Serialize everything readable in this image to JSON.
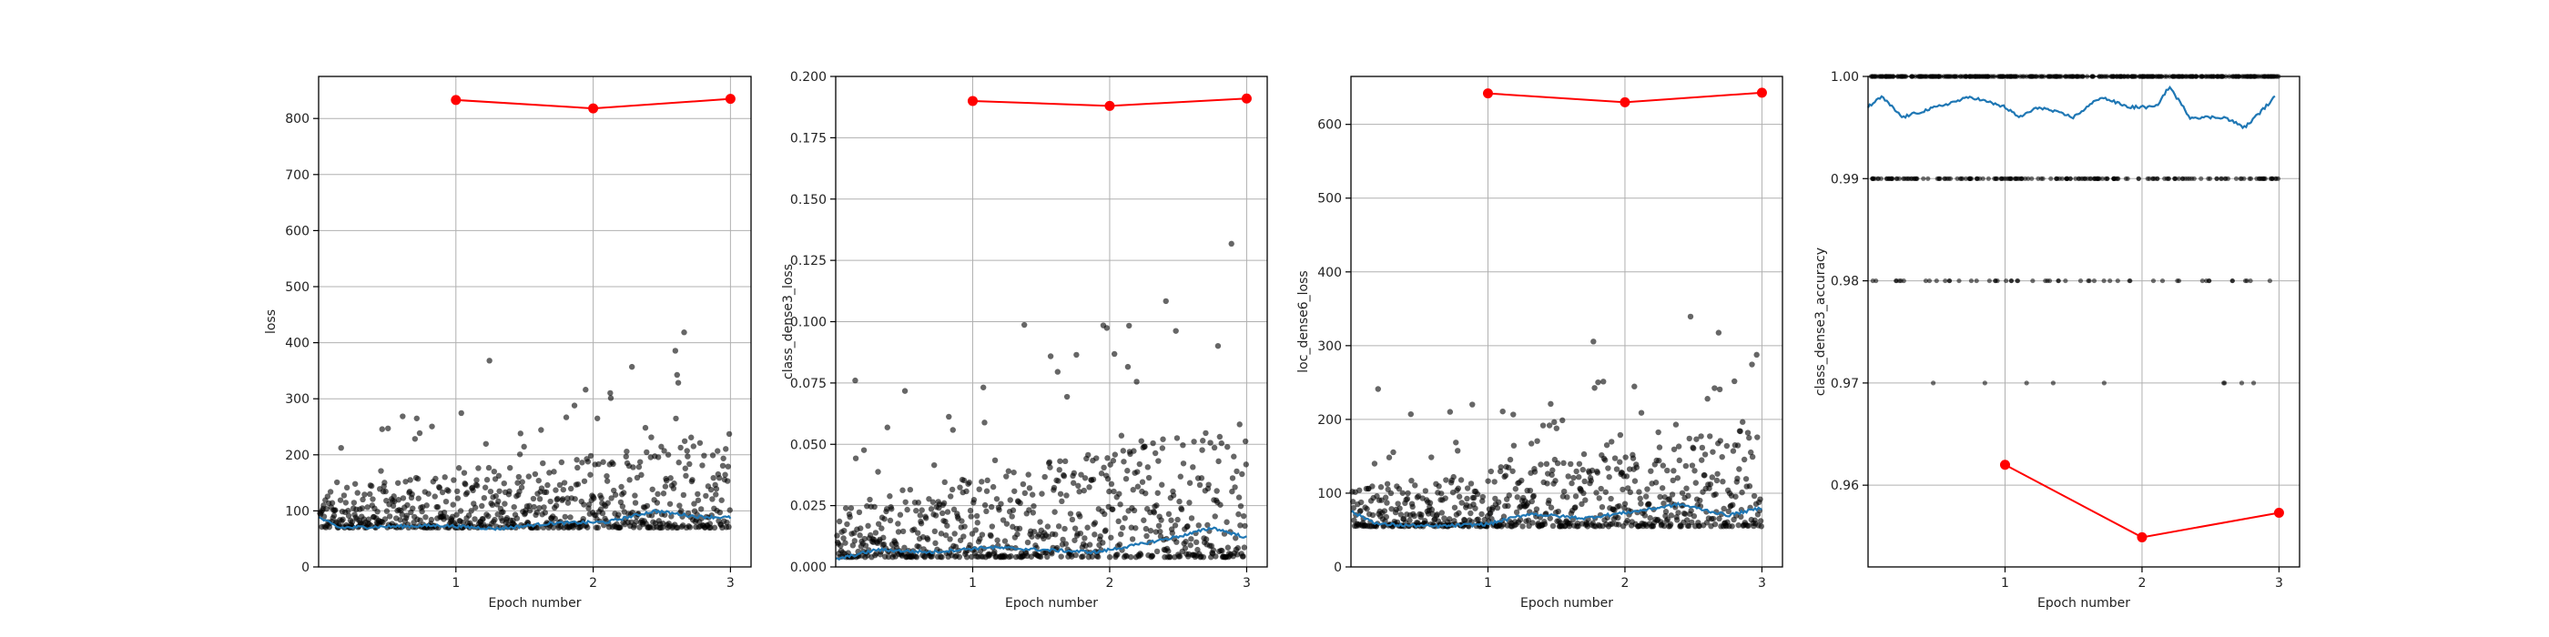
{
  "chart_data": [
    {
      "type": "scatter",
      "xlabel": "Epoch number",
      "ylabel": "loss",
      "xlim": [
        0,
        3.15
      ],
      "ylim": [
        0,
        875
      ],
      "xticks": [
        1,
        2,
        3
      ],
      "xtick_labels": [
        "1",
        "2",
        "3"
      ],
      "yticks": [
        0,
        100,
        200,
        300,
        400,
        500,
        600,
        700,
        800
      ],
      "ytick_labels": [
        "0",
        "100",
        "200",
        "300",
        "400",
        "500",
        "600",
        "700",
        "800"
      ],
      "grid": true,
      "scatter_base": 70,
      "scatter_spread": 36,
      "smooth_anchors": [
        [
          0,
          88
        ],
        [
          0.15,
          70
        ],
        [
          0.5,
          72
        ],
        [
          0.9,
          74
        ],
        [
          1.3,
          68
        ],
        [
          1.7,
          78
        ],
        [
          2.1,
          80
        ],
        [
          2.45,
          100
        ],
        [
          2.75,
          90
        ],
        [
          3,
          88
        ]
      ],
      "series": [
        {
          "name": "epoch",
          "color": "#ff0000",
          "x": [
            1,
            2,
            3
          ],
          "y": [
            833,
            818,
            835
          ]
        }
      ]
    },
    {
      "type": "scatter",
      "xlabel": "Epoch number",
      "ylabel": "class_dense3_loss",
      "xlim": [
        0,
        3.15
      ],
      "ylim": [
        0,
        0.2
      ],
      "xticks": [
        1,
        2,
        3
      ],
      "xtick_labels": [
        "1",
        "2",
        "3"
      ],
      "yticks": [
        0,
        0.025,
        0.05,
        0.075,
        0.1,
        0.125,
        0.15,
        0.175,
        0.2
      ],
      "ytick_labels": [
        "0.000",
        "0.025",
        "0.050",
        "0.075",
        "0.100",
        "0.125",
        "0.150",
        "0.175",
        "0.200"
      ],
      "grid": true,
      "scatter_base": 0.004,
      "scatter_spread": 0.012,
      "smooth_anchors": [
        [
          0,
          0.003
        ],
        [
          0.3,
          0.007
        ],
        [
          0.7,
          0.006
        ],
        [
          1.1,
          0.008
        ],
        [
          1.5,
          0.007
        ],
        [
          1.9,
          0.006
        ],
        [
          2.2,
          0.009
        ],
        [
          2.55,
          0.013
        ],
        [
          2.75,
          0.016
        ],
        [
          3,
          0.012
        ]
      ],
      "series": [
        {
          "name": "epoch",
          "color": "#ff0000",
          "x": [
            1,
            2,
            3
          ],
          "y": [
            0.19,
            0.188,
            0.191
          ]
        }
      ]
    },
    {
      "type": "scatter",
      "xlabel": "Epoch number",
      "ylabel": "loc_dense6_loss",
      "xlim": [
        0,
        3.15
      ],
      "ylim": [
        0,
        665
      ],
      "xticks": [
        1,
        2,
        3
      ],
      "xtick_labels": [
        "1",
        "2",
        "3"
      ],
      "yticks": [
        0,
        100,
        200,
        300,
        400,
        500,
        600
      ],
      "ytick_labels": [
        "0",
        "100",
        "200",
        "300",
        "400",
        "500",
        "600"
      ],
      "grid": true,
      "scatter_base": 55,
      "scatter_spread": 28,
      "smooth_anchors": [
        [
          0,
          75
        ],
        [
          0.2,
          58
        ],
        [
          0.6,
          55
        ],
        [
          1.0,
          58
        ],
        [
          1.3,
          72
        ],
        [
          1.7,
          66
        ],
        [
          2.1,
          76
        ],
        [
          2.4,
          85
        ],
        [
          2.75,
          70
        ],
        [
          3,
          80
        ]
      ],
      "series": [
        {
          "name": "epoch",
          "color": "#ff0000",
          "x": [
            1,
            2,
            3
          ],
          "y": [
            642,
            630,
            643
          ]
        }
      ]
    },
    {
      "type": "scatter",
      "xlabel": "Epoch number",
      "ylabel": "class_dense3_accuracy",
      "xlim": [
        0,
        3.15
      ],
      "ylim": [
        0.952,
        1.0
      ],
      "xticks": [
        1,
        2,
        3
      ],
      "xtick_labels": [
        "1",
        "2",
        "3"
      ],
      "yticks": [
        0.96,
        0.97,
        0.98,
        0.99,
        1.0
      ],
      "ytick_labels": [
        "0.96",
        "0.97",
        "0.98",
        "0.99",
        "1.00"
      ],
      "grid": true,
      "accuracy_levels": [
        1.0,
        0.99,
        0.98,
        0.97
      ],
      "smooth_anchors": [
        [
          0.0,
          0.997
        ],
        [
          0.1,
          0.998
        ],
        [
          0.25,
          0.996
        ],
        [
          0.5,
          0.997
        ],
        [
          0.75,
          0.998
        ],
        [
          1.0,
          0.997
        ],
        [
          1.1,
          0.996
        ],
        [
          1.25,
          0.997
        ],
        [
          1.5,
          0.996
        ],
        [
          1.7,
          0.998
        ],
        [
          1.9,
          0.997
        ],
        [
          2.1,
          0.997
        ],
        [
          2.2,
          0.999
        ],
        [
          2.35,
          0.996
        ],
        [
          2.6,
          0.996
        ],
        [
          2.75,
          0.995
        ],
        [
          2.9,
          0.997
        ],
        [
          2.97,
          0.998
        ]
      ],
      "series": [
        {
          "name": "epoch",
          "color": "#ff0000",
          "x": [
            1,
            2,
            3
          ],
          "y": [
            0.962,
            0.9549,
            0.9573
          ]
        }
      ]
    }
  ],
  "colors": {
    "scatter": "#000000",
    "smooth": "#1f77b4",
    "epoch": "#ff0000",
    "grid": "#b0b0b0",
    "spine": "#000000"
  }
}
